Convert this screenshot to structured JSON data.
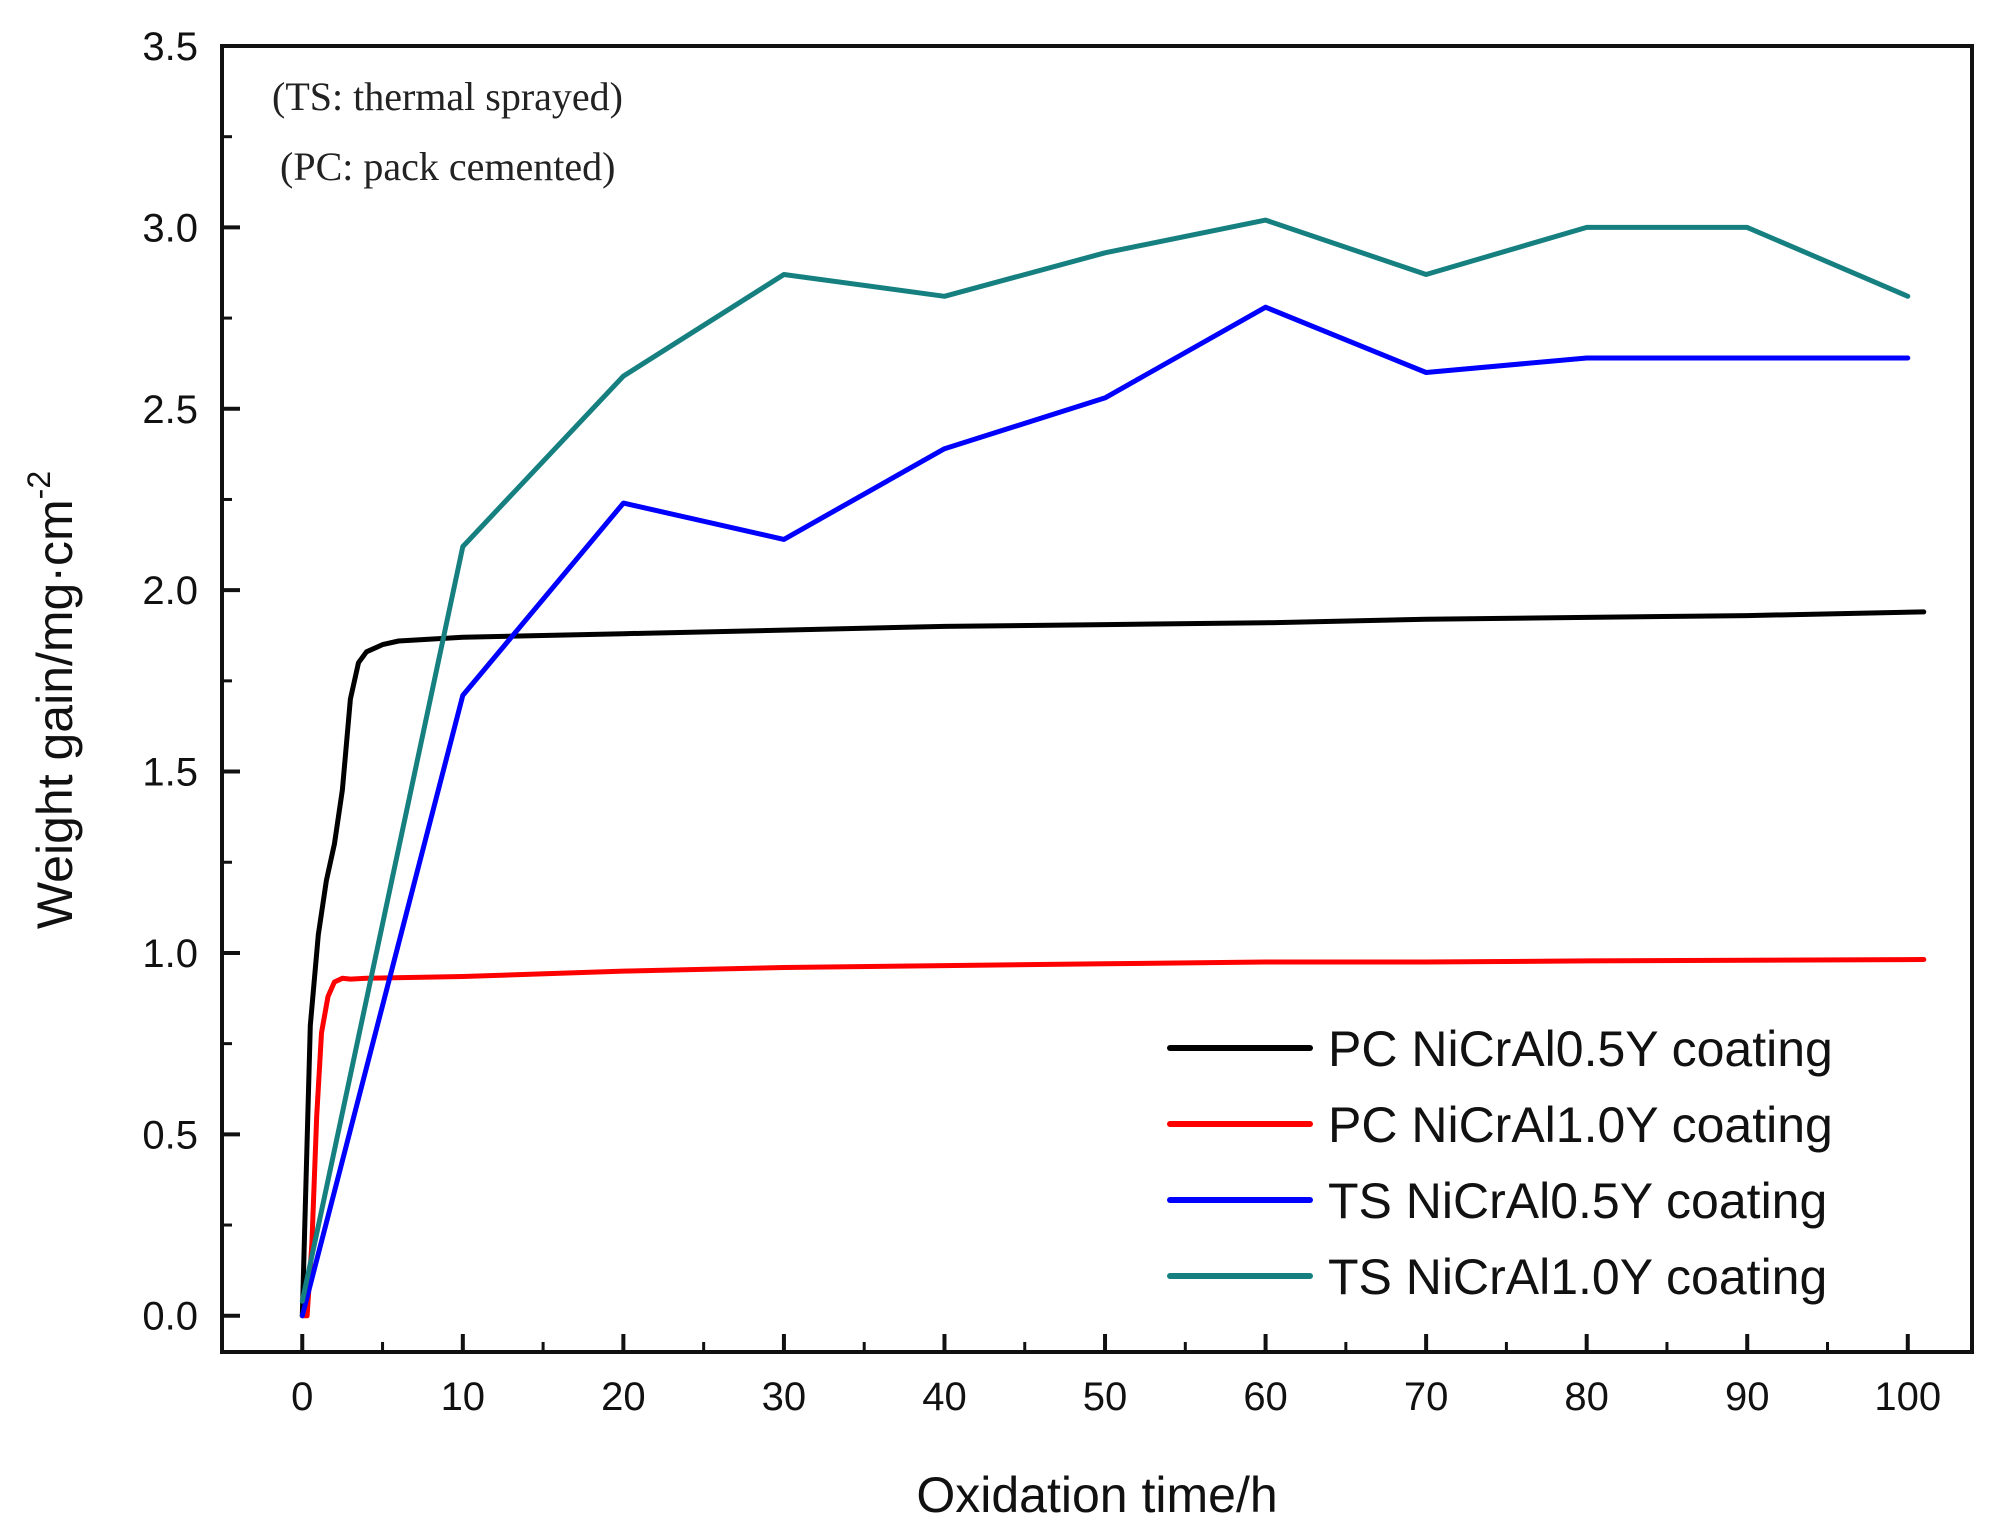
{
  "chart_data": {
    "type": "line",
    "xlabel": "Oxidation time/h",
    "ylabel": "Weight gain/mg·cm",
    "ylabel_superscript": "-2",
    "xlim": [
      -5,
      104
    ],
    "ylim": [
      -0.1,
      3.5
    ],
    "xticks": [
      0,
      10,
      20,
      30,
      40,
      50,
      60,
      70,
      80,
      90,
      100
    ],
    "xtick_labels": [
      "0",
      "10",
      "20",
      "30",
      "40",
      "50",
      "60",
      "70",
      "80",
      "90",
      "100"
    ],
    "yticks": [
      0.0,
      0.5,
      1.0,
      1.5,
      2.0,
      2.5,
      3.0,
      3.5
    ],
    "ytick_labels": [
      "0.0",
      "0.5",
      "1.0",
      "1.5",
      "2.0",
      "2.5",
      "3.0",
      "3.5"
    ],
    "annotations": [
      "(TS: thermal sprayed)",
      "(PC: pack cemented)"
    ],
    "legend_position": "bottom-right",
    "series": [
      {
        "name": "PC NiCrAl0.5Y coating",
        "color": "#000000",
        "x": [
          0,
          0.5,
          1,
          1.5,
          2,
          2.5,
          3,
          3.5,
          4,
          5,
          6,
          8,
          10,
          20,
          30,
          40,
          50,
          60,
          70,
          80,
          90,
          101
        ],
        "y": [
          0,
          0.8,
          1.05,
          1.2,
          1.3,
          1.45,
          1.7,
          1.8,
          1.83,
          1.85,
          1.86,
          1.865,
          1.87,
          1.88,
          1.89,
          1.9,
          1.905,
          1.91,
          1.92,
          1.925,
          1.93,
          1.94
        ]
      },
      {
        "name": "PC NiCrAl1.0Y coating",
        "color": "#ff0000",
        "x": [
          0,
          0.3,
          0.6,
          0.9,
          1.2,
          1.6,
          2,
          2.5,
          3,
          4,
          10,
          20,
          30,
          40,
          50,
          60,
          70,
          80,
          90,
          101
        ],
        "y": [
          0,
          0.0,
          0.2,
          0.55,
          0.78,
          0.88,
          0.92,
          0.93,
          0.928,
          0.93,
          0.935,
          0.95,
          0.96,
          0.965,
          0.97,
          0.975,
          0.975,
          0.978,
          0.98,
          0.982
        ]
      },
      {
        "name": "TS NiCrAl0.5Y coating",
        "color": "#0000ff",
        "x": [
          0,
          10,
          20,
          30,
          40,
          50,
          60,
          70,
          80,
          90,
          100
        ],
        "y": [
          0,
          1.71,
          2.24,
          2.14,
          2.39,
          2.53,
          2.78,
          2.6,
          2.64,
          2.64,
          2.64
        ]
      },
      {
        "name": "TS NiCrAl1.0Y coating",
        "color": "#168080",
        "x": [
          0,
          10,
          20,
          30,
          40,
          50,
          60,
          70,
          80,
          90,
          100
        ],
        "y": [
          0.04,
          2.12,
          2.59,
          2.87,
          2.81,
          2.93,
          3.02,
          2.87,
          3.0,
          3.0,
          2.81
        ]
      }
    ]
  }
}
